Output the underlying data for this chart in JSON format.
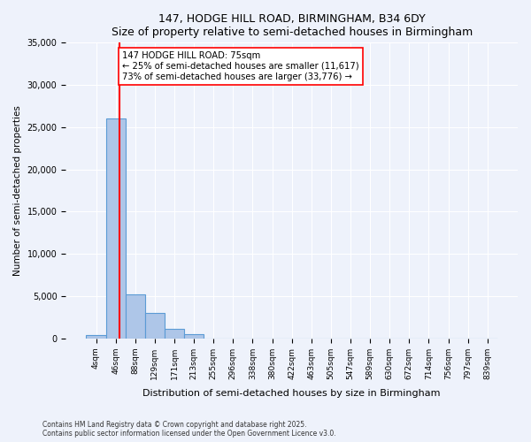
{
  "title": "147, HODGE HILL ROAD, BIRMINGHAM, B34 6DY",
  "subtitle": "Size of property relative to semi-detached houses in Birmingham",
  "xlabel": "Distribution of semi-detached houses by size in Birmingham",
  "ylabel": "Number of semi-detached properties",
  "bin_labels": [
    "4sqm",
    "46sqm",
    "88sqm",
    "129sqm",
    "171sqm",
    "213sqm",
    "255sqm",
    "296sqm",
    "338sqm",
    "380sqm",
    "422sqm",
    "463sqm",
    "505sqm",
    "547sqm",
    "589sqm",
    "630sqm",
    "672sqm",
    "714sqm",
    "756sqm",
    "797sqm",
    "839sqm"
  ],
  "bar_values": [
    400,
    26000,
    5200,
    3000,
    1100,
    550,
    0,
    0,
    0,
    0,
    0,
    0,
    0,
    0,
    0,
    0,
    0,
    0,
    0,
    0,
    0
  ],
  "bar_color": "#aec6e8",
  "bar_edge_color": "#5b9bd5",
  "vline_color": "red",
  "annotation_text": "147 HODGE HILL ROAD: 75sqm\n← 25% of semi-detached houses are smaller (11,617)\n73% of semi-detached houses are larger (33,776) →",
  "annotation_box_color": "white",
  "annotation_box_edge": "red",
  "ylim": [
    0,
    35000
  ],
  "yticks": [
    0,
    5000,
    10000,
    15000,
    20000,
    25000,
    30000,
    35000
  ],
  "footer": "Contains HM Land Registry data © Crown copyright and database right 2025.\nContains public sector information licensed under the Open Government Licence v3.0.",
  "bg_color": "#eef2fb",
  "plot_bg_color": "#eef2fb"
}
